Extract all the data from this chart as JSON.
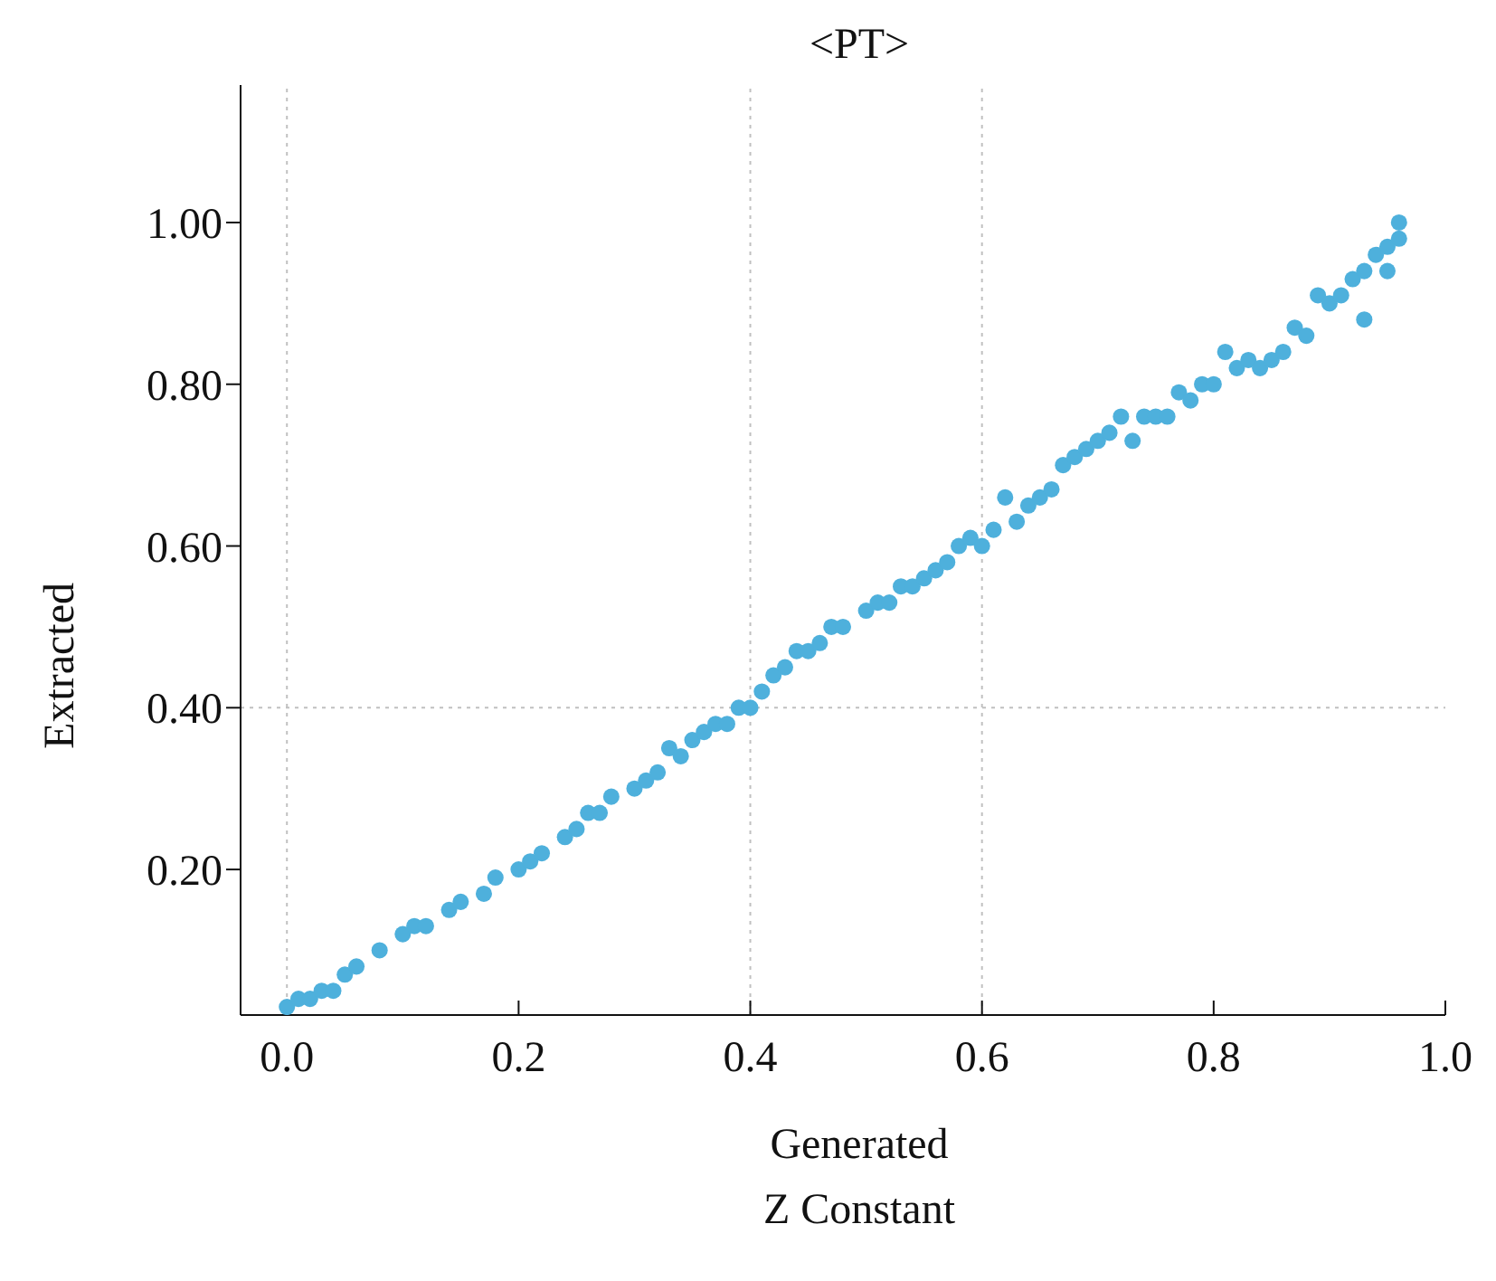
{
  "chart_data": {
    "type": "scatter",
    "title": "<PT>",
    "xlabel": "Generated",
    "ylabel": "Extracted",
    "annotations": [
      "Z Constant"
    ],
    "xlim": [
      -0.04,
      1.0
    ],
    "ylim": [
      0.02,
      1.17
    ],
    "xticks": [
      {
        "value": 0,
        "label": "0.0"
      },
      0.2,
      0.4,
      0.6,
      0.8,
      {
        "value": 1,
        "label": "1.0"
      }
    ],
    "yticks": [
      {
        "value": 0.2,
        "label": "0.20"
      },
      {
        "value": 0.4,
        "label": "0.40"
      },
      {
        "value": 0.6,
        "label": "0.60"
      },
      {
        "value": 0.8,
        "label": "0.80"
      },
      {
        "value": 1,
        "label": "1.00"
      }
    ],
    "grid": false,
    "marker": "circle",
    "legend": false,
    "ref_lines": [
      {
        "axis": "x",
        "value": 0,
        "color": "#c0c0c0",
        "line_style": "dotted"
      },
      {
        "axis": "x",
        "value": 0.4,
        "color": "#c0c0c0",
        "line_style": "dotted"
      },
      {
        "axis": "x",
        "value": 0.6,
        "color": "#c0c0c0",
        "line_style": "dotted"
      },
      {
        "axis": "y",
        "value": 0.4,
        "color": "#c0c0c0",
        "line_style": "dotted"
      }
    ],
    "series": [
      {
        "color": "#4eb0dc",
        "x": [
          0.0,
          0.01,
          0.02,
          0.03,
          0.04,
          0.05,
          0.06,
          0.08,
          0.1,
          0.11,
          0.12,
          0.14,
          0.15,
          0.17,
          0.18,
          0.2,
          0.21,
          0.22,
          0.24,
          0.25,
          0.26,
          0.27,
          0.28,
          0.3,
          0.31,
          0.32,
          0.33,
          0.34,
          0.35,
          0.36,
          0.37,
          0.38,
          0.39,
          0.4,
          0.41,
          0.42,
          0.43,
          0.44,
          0.45,
          0.46,
          0.47,
          0.48,
          0.5,
          0.51,
          0.52,
          0.53,
          0.54,
          0.55,
          0.56,
          0.57,
          0.58,
          0.59,
          0.6,
          0.61,
          0.62,
          0.63,
          0.64,
          0.65,
          0.66,
          0.67,
          0.68,
          0.69,
          0.7,
          0.71,
          0.72,
          0.73,
          0.74,
          0.75,
          0.76,
          0.77,
          0.78,
          0.79,
          0.8,
          0.81,
          0.82,
          0.83,
          0.84,
          0.85,
          0.86,
          0.87,
          0.88,
          0.89,
          0.9,
          0.91,
          0.92,
          0.93,
          0.94,
          0.95,
          0.96,
          0.96,
          0.95,
          0.93
        ],
        "values": [
          0.03,
          0.04,
          0.04,
          0.05,
          0.05,
          0.07,
          0.08,
          0.1,
          0.12,
          0.13,
          0.13,
          0.15,
          0.16,
          0.17,
          0.19,
          0.2,
          0.21,
          0.22,
          0.24,
          0.25,
          0.27,
          0.27,
          0.29,
          0.3,
          0.31,
          0.32,
          0.35,
          0.34,
          0.36,
          0.37,
          0.38,
          0.38,
          0.4,
          0.4,
          0.42,
          0.44,
          0.45,
          0.47,
          0.47,
          0.48,
          0.5,
          0.5,
          0.52,
          0.53,
          0.53,
          0.55,
          0.55,
          0.56,
          0.57,
          0.58,
          0.6,
          0.61,
          0.6,
          0.62,
          0.66,
          0.63,
          0.65,
          0.66,
          0.67,
          0.7,
          0.71,
          0.72,
          0.73,
          0.74,
          0.76,
          0.73,
          0.76,
          0.76,
          0.76,
          0.79,
          0.78,
          0.8,
          0.8,
          0.84,
          0.82,
          0.83,
          0.82,
          0.83,
          0.84,
          0.87,
          0.86,
          0.91,
          0.9,
          0.91,
          0.93,
          0.94,
          0.96,
          0.97,
          0.98,
          1.0,
          0.94,
          0.88
        ]
      }
    ]
  }
}
